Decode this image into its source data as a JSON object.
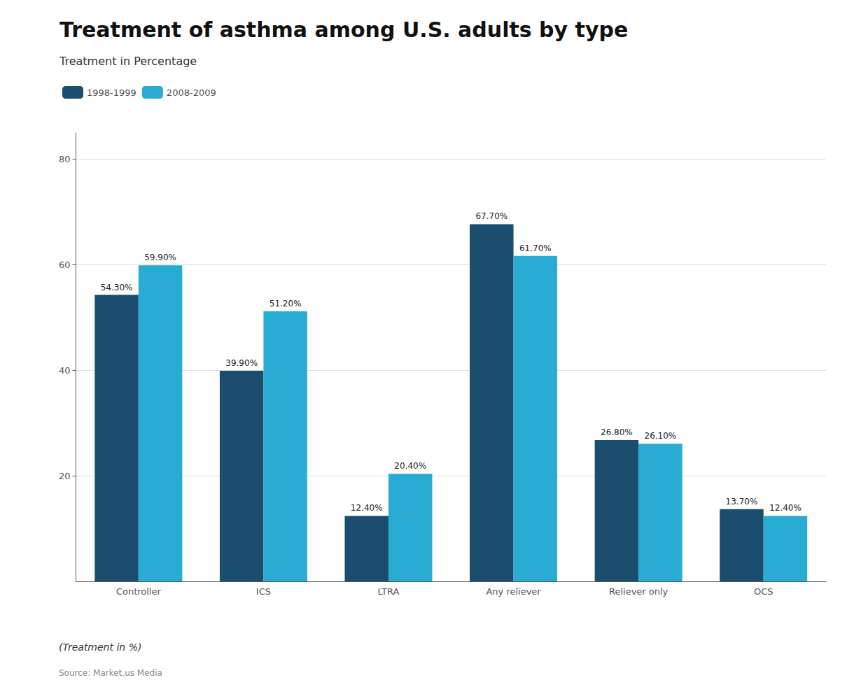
{
  "chart_data": {
    "type": "bar",
    "title": "Treatment of asthma among U.S. adults by type",
    "subtitle": "Treatment in Percentage",
    "annotations": [
      "(Treatment in %)",
      "Source: Market.us Media"
    ],
    "categories": [
      "Controller",
      "ICS",
      "LTRA",
      "Any reliever",
      "Reliever only",
      "OCS"
    ],
    "series": [
      {
        "name": "1998-1999",
        "color": "#1a4d6e",
        "values": [
          54.3,
          39.9,
          12.4,
          67.7,
          26.8,
          13.7
        ],
        "value_labels": [
          "54.30%",
          "39.90%",
          "12.40%",
          "67.70%",
          "26.80%",
          "13.70%"
        ]
      },
      {
        "name": "2008-2009",
        "color": "#29acd4",
        "values": [
          59.9,
          51.2,
          20.4,
          61.7,
          26.1,
          12.4
        ],
        "value_labels": [
          "59.90%",
          "51.20%",
          "20.40%",
          "61.70%",
          "26.10%",
          "12.40%"
        ]
      }
    ],
    "ylim": [
      0,
      85
    ],
    "yticks": [
      20,
      40,
      60,
      80
    ],
    "grid": true,
    "legend": "upper left",
    "data_labels": true
  }
}
